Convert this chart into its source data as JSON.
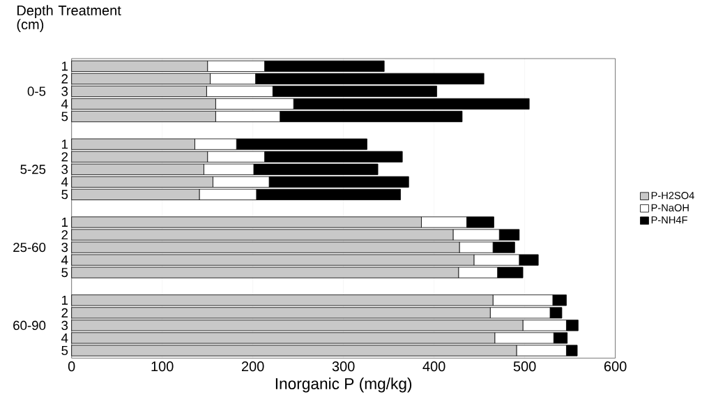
{
  "chart_data": {
    "type": "bar",
    "orientation": "horizontal",
    "stacked": true,
    "xlabel": "Inorganic P (mg/kg)",
    "ylabel": "Depth Treatment (cm)",
    "categories": [
      "1",
      "2",
      "3",
      "4",
      "5",
      "1",
      "2",
      "3",
      "4",
      "5",
      "1",
      "2",
      "3",
      "4",
      "5",
      "1",
      "2",
      "3",
      "4",
      "5"
    ],
    "annotations": [
      "0-5",
      "5-25",
      "25-60",
      "60-90"
    ],
    "series": [
      {
        "name": "P-H2SO4",
        "color": "#c8c8c8",
        "values": [
          150,
          153,
          149,
          159,
          159,
          136,
          150,
          146,
          156,
          141,
          386,
          421,
          428,
          444,
          427,
          465,
          462,
          498,
          467,
          491
        ]
      },
      {
        "name": "P-NaOH",
        "color": "#ffffff",
        "values": [
          63,
          50,
          73,
          86,
          71,
          46,
          63,
          55,
          62,
          63,
          50,
          51,
          37,
          50,
          43,
          66,
          66,
          48,
          65,
          55
        ]
      },
      {
        "name": "P-NH4F",
        "color": "#000000",
        "values": [
          132,
          252,
          181,
          260,
          201,
          144,
          152,
          137,
          154,
          159,
          30,
          22,
          24,
          21,
          28,
          15,
          13,
          13,
          15,
          12
        ]
      }
    ],
    "xlim": [
      0,
      600
    ],
    "xticks": [
      0,
      100,
      200,
      300,
      400,
      500,
      600
    ],
    "grid": "x",
    "legend": "right"
  }
}
